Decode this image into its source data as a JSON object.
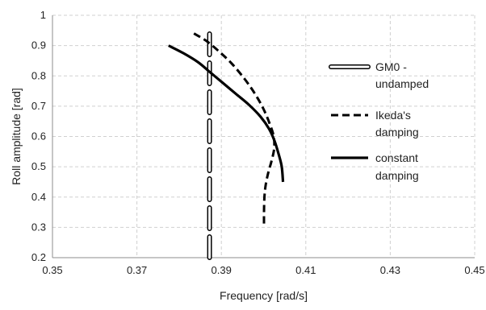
{
  "chart_data": {
    "type": "line",
    "title": "",
    "xlabel": "Frequency  [rad/s]",
    "ylabel": "Roll amplitude [rad]",
    "xlim": [
      0.35,
      0.45
    ],
    "ylim": [
      0.2,
      1.0
    ],
    "xticks": [
      0.35,
      0.37,
      0.39,
      0.41,
      0.43,
      0.45
    ],
    "yticks": [
      0.2,
      0.3,
      0.4,
      0.5,
      0.6,
      0.7,
      0.8,
      0.9,
      1.0
    ],
    "xtick_labels": [
      "0.35",
      "0.37",
      "0.39",
      "0.41",
      "0.43",
      "0.45"
    ],
    "ytick_labels": [
      "0.2",
      "0.3",
      "0.4",
      "0.5",
      "0.6",
      "0.7",
      "0.8",
      "0.9",
      "1"
    ],
    "grid": true,
    "grid_style": "dashed",
    "legend_position": "right",
    "series": [
      {
        "name": "GM0 -\nundamped",
        "style": "hollow-dashed",
        "color": "#000000",
        "points": [
          [
            0.3872,
            0.2
          ],
          [
            0.3872,
            0.96
          ]
        ]
      },
      {
        "name": "Ikeda's\ndamping",
        "style": "dashed",
        "color": "#000000",
        "points": [
          [
            0.3835,
            0.94
          ],
          [
            0.3865,
            0.915
          ],
          [
            0.3895,
            0.88
          ],
          [
            0.3925,
            0.84
          ],
          [
            0.3955,
            0.79
          ],
          [
            0.398,
            0.74
          ],
          [
            0.4,
            0.69
          ],
          [
            0.4015,
            0.64
          ],
          [
            0.4024,
            0.6
          ],
          [
            0.4025,
            0.56
          ],
          [
            0.4019,
            0.52
          ],
          [
            0.4011,
            0.48
          ],
          [
            0.4005,
            0.44
          ],
          [
            0.4002,
            0.4
          ],
          [
            0.4001,
            0.35
          ],
          [
            0.4001,
            0.3
          ]
        ]
      },
      {
        "name": "constant\ndamping",
        "style": "solid",
        "color": "#000000",
        "points": [
          [
            0.3775,
            0.9
          ],
          [
            0.381,
            0.875
          ],
          [
            0.3845,
            0.845
          ],
          [
            0.3875,
            0.81
          ],
          [
            0.3905,
            0.775
          ],
          [
            0.3935,
            0.74
          ],
          [
            0.3965,
            0.705
          ],
          [
            0.3993,
            0.665
          ],
          [
            0.4013,
            0.625
          ],
          [
            0.4026,
            0.585
          ],
          [
            0.4036,
            0.54
          ],
          [
            0.4043,
            0.5
          ],
          [
            0.4046,
            0.45
          ]
        ]
      }
    ]
  }
}
